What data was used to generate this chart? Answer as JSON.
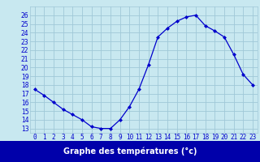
{
  "hours": [
    0,
    1,
    2,
    3,
    4,
    5,
    6,
    7,
    8,
    9,
    10,
    11,
    12,
    13,
    14,
    15,
    16,
    17,
    18,
    19,
    20,
    21,
    22,
    23
  ],
  "temperatures": [
    17.5,
    16.8,
    16.0,
    15.2,
    14.6,
    14.0,
    13.2,
    13.0,
    13.0,
    14.0,
    15.5,
    17.5,
    20.3,
    23.5,
    24.5,
    25.3,
    25.8,
    26.0,
    24.8,
    24.2,
    23.5,
    21.5,
    19.2,
    18.0
  ],
  "line_color": "#0000cc",
  "marker": "D",
  "marker_size": 2.0,
  "bg_color": "#c8e8f0",
  "grid_color": "#a0c8d8",
  "title": "Graphe des températures (°c)",
  "ylabel_ticks": [
    13,
    14,
    15,
    16,
    17,
    18,
    19,
    20,
    21,
    22,
    23,
    24,
    25,
    26
  ],
  "xlim": [
    -0.5,
    23.5
  ],
  "ylim": [
    12.5,
    27.0
  ],
  "title_bg": "#0000aa",
  "title_text_color": "#ffffff",
  "tick_fontsize": 5.5,
  "title_fontsize": 7.0
}
